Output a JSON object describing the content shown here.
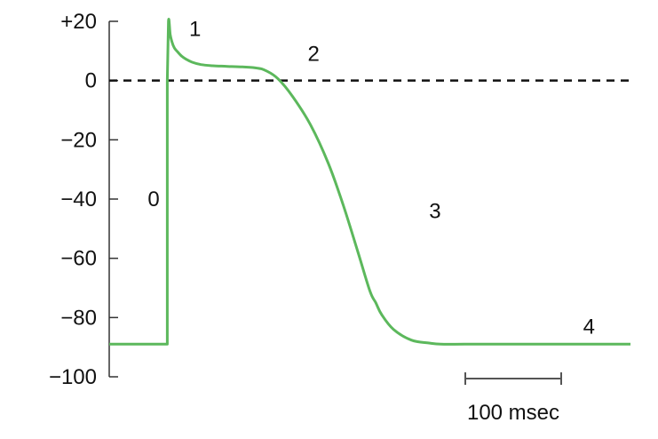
{
  "chart_data": {
    "type": "line",
    "title": "",
    "xlabel": "",
    "ylabel": "",
    "ylim": [
      -100,
      20
    ],
    "xlim": [
      -200,
      1560
    ],
    "y_ticks": [
      {
        "value": 20,
        "label": "+20"
      },
      {
        "value": 0,
        "label": "0"
      },
      {
        "value": -20,
        "label": "−20"
      },
      {
        "value": -40,
        "label": "−40"
      },
      {
        "value": -60,
        "label": "−60"
      },
      {
        "value": -80,
        "label": "−80"
      },
      {
        "value": -100,
        "label": "−100"
      }
    ],
    "reference_line": {
      "value": 0,
      "style": "dashed"
    },
    "grid": false,
    "legend": "none",
    "series": [
      {
        "color": "#5cb85c",
        "x": [
          -200,
          -4,
          -4,
          0,
          6,
          12,
          20,
          30,
          45,
          60,
          80,
          110,
          150,
          200,
          250,
          300,
          330,
          370,
          420,
          480,
          540,
          590,
          640,
          680,
          700,
          720,
          760,
          820,
          880,
          920,
          1000,
          1100,
          1300,
          1560
        ],
        "y": [
          -89,
          -89,
          0,
          20,
          15.5,
          13,
          11,
          9.8,
          8.2,
          7.2,
          6.2,
          5.4,
          5.0,
          4.8,
          4.6,
          4.2,
          3.3,
          0.6,
          -5.5,
          -15,
          -28,
          -42,
          -58,
          -71,
          -75,
          -79,
          -84,
          -87.6,
          -88.6,
          -89,
          -89,
          -89,
          -89,
          -89
        ]
      }
    ],
    "annotations": [
      {
        "text": "0",
        "x": -50,
        "y": -40
      },
      {
        "text": "1",
        "x": 90,
        "y": 17.5
      },
      {
        "text": "2",
        "x": 490,
        "y": 9
      },
      {
        "text": "3",
        "x": 900,
        "y": -44
      },
      {
        "text": "4",
        "x": 1420,
        "y": -83
      }
    ],
    "scale_bar": {
      "label": "100 msec",
      "length": 100
    }
  },
  "colors": {
    "trace": "#5cb85c",
    "axis": "#333333",
    "text": "#111111"
  }
}
